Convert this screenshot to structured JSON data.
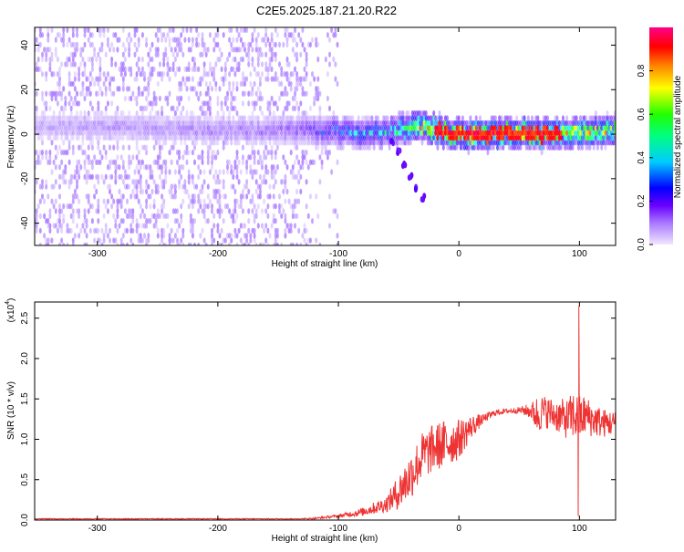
{
  "figure": {
    "title": "C2E5.2025.187.21.20.R22"
  },
  "chart_data": [
    {
      "type": "heatmap",
      "xlabel": "Height of straight line (km)",
      "ylabel": "Frequency (Hz)",
      "xlim": [
        -352,
        130
      ],
      "ylim": [
        -50,
        48
      ],
      "xticks": [
        -300,
        -200,
        -100,
        0,
        100
      ],
      "xtick_labels": [
        "-300",
        "-200",
        "-100",
        "0",
        "100"
      ],
      "yticks": [
        -40,
        -20,
        0,
        20,
        40
      ],
      "ytick_labels": [
        "-40",
        "-20",
        "0",
        "20",
        "40"
      ],
      "grid": false,
      "colorbar": {
        "label": "Normalized spectral amplitude",
        "range": [
          0,
          1
        ],
        "ticks": [
          0.0,
          0.2,
          0.4,
          0.6,
          0.8
        ],
        "tick_labels": [
          "0.0",
          "0.2",
          "0.4",
          "0.6",
          "0.8"
        ],
        "colormap": [
          "#f2e6ff",
          "#9966ff",
          "#6600ff",
          "#0000ff",
          "#00ffff",
          "#00ff00",
          "#ffff00",
          "#ff8800",
          "#ff0000",
          "#ff0088"
        ]
      },
      "ridge": {
        "description_points_x": [
          -352,
          -300,
          -250,
          -200,
          -150,
          -120,
          -100,
          -80,
          -60,
          -45,
          -35,
          -20,
          0,
          50,
          80,
          100,
          130
        ],
        "center_freq_hz": [
          4,
          3,
          3,
          2,
          2,
          2,
          1,
          0,
          1,
          2,
          4,
          2,
          0,
          0,
          0,
          1,
          2
        ],
        "peak_amplitude": [
          0.12,
          0.14,
          0.15,
          0.16,
          0.18,
          0.28,
          0.38,
          0.45,
          0.5,
          0.6,
          0.7,
          0.8,
          0.9,
          0.9,
          0.82,
          0.75,
          0.7
        ]
      },
      "branch": {
        "x": [
          -55,
          -50,
          -45,
          -40,
          -35,
          -30
        ],
        "freq_hz": [
          -3,
          -8,
          -14,
          -19,
          -24,
          -29
        ]
      }
    },
    {
      "type": "line",
      "xlabel": "Height of straight line (km)",
      "ylabel": "SNR (10 * v/v)",
      "y_scale_label": "(x10",
      "y_scale_exponent": "4",
      "xlim": [
        -352,
        130
      ],
      "ylim": [
        0,
        2.7
      ],
      "xticks": [
        -300,
        -200,
        -100,
        0,
        100
      ],
      "xtick_labels": [
        "-300",
        "-200",
        "-100",
        "0",
        "100"
      ],
      "yticks": [
        0.0,
        0.5,
        1.0,
        1.5,
        2.0,
        2.5
      ],
      "ytick_labels": [
        "0.0",
        "0.5",
        "1.0",
        "1.5",
        "2.0",
        "2.5"
      ],
      "series_color": "#ee3333",
      "grid": false,
      "series": [
        {
          "x": [
            -352,
            -300,
            -250,
            -200,
            -150,
            -120,
            -100,
            -80,
            -60,
            -50,
            -40,
            -30,
            -20,
            -10,
            0,
            10,
            20,
            30,
            40,
            50,
            60,
            65,
            70,
            80,
            90,
            95,
            100,
            105,
            110,
            120,
            130
          ],
          "y": [
            0.0,
            0.0,
            0.0,
            0.0,
            0.0,
            0.02,
            0.05,
            0.1,
            0.2,
            0.35,
            0.55,
            0.8,
            0.9,
            0.95,
            1.0,
            1.15,
            1.25,
            1.33,
            1.35,
            1.36,
            1.35,
            1.3,
            1.35,
            1.3,
            1.25,
            1.3,
            1.25,
            1.3,
            1.25,
            1.2,
            1.2
          ],
          "noise_amplitude": [
            0.0,
            0.005,
            0.005,
            0.006,
            0.008,
            0.01,
            0.02,
            0.05,
            0.1,
            0.22,
            0.3,
            0.3,
            0.3,
            0.3,
            0.25,
            0.15,
            0.06,
            0.04,
            0.03,
            0.04,
            0.1,
            0.25,
            0.2,
            0.2,
            0.25,
            0.3,
            0.3,
            0.25,
            0.22,
            0.18,
            0.15
          ]
        }
      ],
      "spikes": [
        {
          "x": 99.5,
          "y": 2.65
        },
        {
          "x": 99,
          "y": 0.05
        }
      ]
    }
  ]
}
